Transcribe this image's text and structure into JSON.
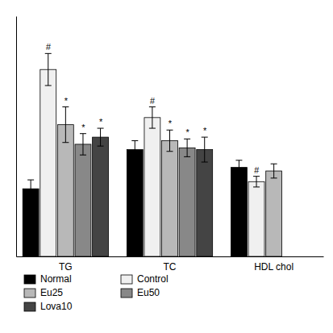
{
  "chart_data": {
    "type": "bar",
    "categories": [
      "TG",
      "TC",
      "HDL chol"
    ],
    "series": [
      {
        "name": "Normal",
        "color": "#000000",
        "values": [
          0.38,
          0.6,
          0.5
        ],
        "errors": [
          0.05,
          0.05,
          0.04
        ]
      },
      {
        "name": "Control",
        "color": "#f0f0f0",
        "values": [
          1.05,
          0.78,
          0.42
        ],
        "errors": [
          0.09,
          0.06,
          0.03
        ],
        "annotations": [
          "#",
          "#",
          "#"
        ]
      },
      {
        "name": "Eu25",
        "color": "#b8b8b8",
        "values": [
          0.74,
          0.65,
          0.48
        ],
        "errors": [
          0.1,
          0.06,
          0.04
        ],
        "annotations": [
          "*",
          "*",
          null
        ]
      },
      {
        "name": "Eu50",
        "color": "#888888",
        "values": [
          0.63,
          0.61,
          null
        ],
        "errors": [
          0.06,
          0.05,
          null
        ],
        "annotations": [
          "*",
          "*",
          null
        ]
      },
      {
        "name": "Lova10",
        "color": "#444444",
        "values": [
          0.67,
          0.6,
          null
        ],
        "errors": [
          0.05,
          0.07,
          null
        ],
        "annotations": [
          "*",
          "*",
          null
        ]
      }
    ],
    "ylim": [
      0,
      1.35
    ],
    "yticks": [],
    "grid": false,
    "tick_labels": "x",
    "legend": "bottom"
  }
}
